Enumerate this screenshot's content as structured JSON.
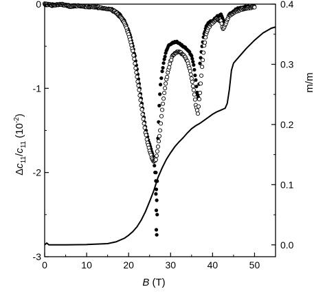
{
  "chart_data": {
    "type": "scatter",
    "title": "",
    "x_axis": {
      "label_symbol": "B",
      "label_unit": " (T)",
      "range": [
        0,
        55
      ],
      "ticks": [
        0,
        10,
        20,
        30,
        40,
        50
      ],
      "tick_labels": [
        "0",
        "10",
        "20",
        "30",
        "40",
        "50"
      ]
    },
    "y_left": {
      "label_delta": "Δ",
      "label_c": "c",
      "label_sub": "11",
      "label_slash": "/",
      "label_c2": "c",
      "label_sub2": "11",
      "label_paren_open": " (10",
      "label_sup": "-2",
      "label_paren_close": ")",
      "range": [
        -3,
        0
      ],
      "ticks": [
        0,
        -1,
        -2,
        -3
      ],
      "tick_labels": [
        "0",
        "-1",
        "-2",
        "-3"
      ]
    },
    "y_right": {
      "label": "m/m",
      "range": [
        -0.0197,
        0.4
      ],
      "ticks": [
        0.0,
        0.1,
        0.2,
        0.3,
        0.4
      ],
      "tick_labels": [
        "0.0",
        "0.1",
        "0.2",
        "0.3",
        "0.4"
      ]
    },
    "grid": false,
    "legend": "none",
    "series": [
      {
        "kind": "filled-circles",
        "axis": "left",
        "color": "#000000",
        "x": [
          0,
          2,
          4,
          6,
          8,
          10,
          12,
          14,
          16,
          17,
          18,
          19,
          20,
          20.5,
          21,
          21.5,
          22,
          22.5,
          23,
          23.5,
          24,
          24.5,
          25,
          25.5,
          26,
          26.3,
          26.5,
          26.6,
          26.8,
          27,
          27.3,
          27.6,
          28,
          28.5,
          29,
          29.5,
          30,
          30.5,
          31,
          31.5,
          32,
          32.5,
          33,
          33.5,
          34,
          34.5,
          35,
          35.5,
          36,
          36.3,
          36.6,
          36.8,
          37,
          37.5,
          38,
          38.5,
          39,
          39.5,
          40,
          41,
          42,
          42.5,
          43,
          43.5,
          44,
          45,
          46,
          47,
          48,
          49,
          50
        ],
        "y": [
          -0.01,
          -0.02,
          -0.01,
          -0.03,
          -0.02,
          -0.03,
          -0.04,
          -0.05,
          -0.06,
          -0.09,
          -0.13,
          -0.2,
          -0.32,
          -0.4,
          -0.5,
          -0.62,
          -0.78,
          -0.95,
          -1.12,
          -1.3,
          -1.45,
          -1.58,
          -1.67,
          -1.75,
          -1.85,
          -2.0,
          -2.25,
          -2.45,
          -2.1,
          -1.6,
          -1.2,
          -0.95,
          -0.8,
          -0.65,
          -0.55,
          -0.5,
          -0.47,
          -0.46,
          -0.45,
          -0.45,
          -0.46,
          -0.48,
          -0.5,
          -0.52,
          -0.54,
          -0.57,
          -0.62,
          -0.72,
          -0.9,
          -1.05,
          -1.1,
          -0.95,
          -0.7,
          -0.5,
          -0.35,
          -0.27,
          -0.22,
          -0.2,
          -0.2,
          -0.15,
          -0.12,
          -0.18,
          -0.25,
          -0.18,
          -0.12,
          -0.08,
          -0.05,
          -0.04,
          -0.03,
          -0.03,
          -0.02
        ]
      },
      {
        "kind": "filled-circles-isolated",
        "axis": "left",
        "color": "#000000",
        "x": [
          26.5,
          26.6,
          26.7,
          26.8,
          26.6,
          26.7,
          26.5
        ],
        "y": [
          -2.1,
          -2.2,
          -2.33,
          -2.5,
          -2.68,
          -2.74,
          -2.0
        ]
      },
      {
        "kind": "open-circles",
        "axis": "left",
        "color": "#000000",
        "x": [
          0,
          2,
          4,
          6,
          8,
          10,
          12,
          14,
          16,
          17,
          18,
          19,
          20,
          20.5,
          21,
          21.5,
          22,
          22.5,
          23,
          23.5,
          24,
          24.5,
          25,
          25.5,
          26,
          26.5,
          27,
          27.5,
          28,
          28.5,
          29,
          29.5,
          30,
          30.5,
          31,
          31.5,
          32,
          32.5,
          33,
          33.5,
          34,
          34.5,
          35,
          35.5,
          36,
          36.5,
          37,
          37.5,
          38,
          38.5,
          39,
          40,
          41,
          42,
          42.5,
          43,
          43.5,
          44,
          45,
          46,
          47,
          48,
          49,
          50
        ],
        "y": [
          0.0,
          -0.01,
          0.0,
          -0.02,
          -0.02,
          -0.03,
          -0.03,
          -0.05,
          -0.07,
          -0.1,
          -0.15,
          -0.22,
          -0.36,
          -0.45,
          -0.56,
          -0.7,
          -0.86,
          -1.02,
          -1.2,
          -1.37,
          -1.52,
          -1.64,
          -1.74,
          -1.82,
          -1.87,
          -1.85,
          -1.7,
          -1.5,
          -1.25,
          -1.05,
          -0.9,
          -0.78,
          -0.68,
          -0.61,
          -0.58,
          -0.57,
          -0.57,
          -0.58,
          -0.6,
          -0.63,
          -0.68,
          -0.76,
          -0.88,
          -1.02,
          -1.2,
          -1.3,
          -1.05,
          -0.75,
          -0.5,
          -0.35,
          -0.28,
          -0.22,
          -0.18,
          -0.2,
          -0.3,
          -0.25,
          -0.18,
          -0.14,
          -0.1,
          -0.08,
          -0.06,
          -0.05,
          -0.04,
          -0.03
        ]
      },
      {
        "kind": "line",
        "axis": "right",
        "color": "#000000",
        "x": [
          0,
          0.5,
          1,
          2,
          5,
          10,
          15,
          17,
          19,
          20,
          21,
          22,
          23,
          24,
          25,
          26,
          27,
          28,
          29,
          30,
          31,
          32,
          33,
          34,
          35,
          36,
          37,
          38,
          39,
          40,
          41,
          42,
          43,
          43.5,
          44,
          44.5,
          45,
          46,
          47,
          48,
          49,
          50,
          51,
          52,
          53,
          54,
          55
        ],
        "y": [
          0.0,
          0.003,
          0.0,
          0.0,
          0.0,
          0.0005,
          0.002,
          0.005,
          0.011,
          0.016,
          0.022,
          0.03,
          0.041,
          0.055,
          0.072,
          0.09,
          0.112,
          0.128,
          0.142,
          0.153,
          0.163,
          0.171,
          0.178,
          0.186,
          0.193,
          0.198,
          0.202,
          0.207,
          0.212,
          0.217,
          0.221,
          0.224,
          0.227,
          0.235,
          0.258,
          0.29,
          0.302,
          0.31,
          0.318,
          0.326,
          0.333,
          0.34,
          0.346,
          0.352,
          0.356,
          0.36,
          0.362
        ]
      }
    ]
  }
}
